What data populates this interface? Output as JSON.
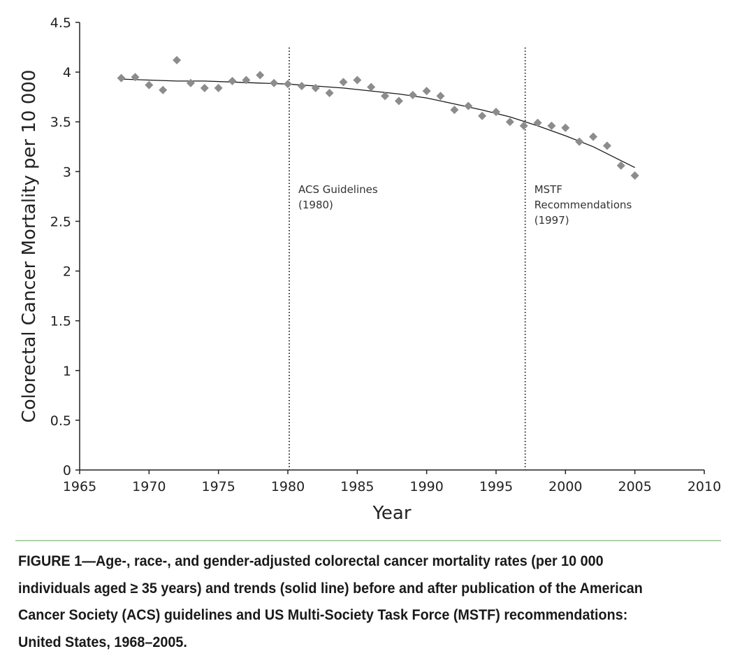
{
  "chart_data": {
    "type": "scatter",
    "xlabel": "Year",
    "ylabel": "Colorectal Cancer Mortality per 10 000",
    "xlim": [
      1965,
      2010
    ],
    "ylim": [
      0,
      4.5
    ],
    "x_ticks": [
      "1965",
      "1970",
      "1975",
      "1980",
      "1985",
      "1990",
      "1995",
      "2000",
      "2005",
      "2010"
    ],
    "y_ticks": [
      "0",
      "0.5",
      "1",
      "1.5",
      "2",
      "2.5",
      "3",
      "3.5",
      "4",
      "4.5"
    ],
    "grid": false,
    "marker_color": "#8c8c8c",
    "trend_color": "#1a1a1a",
    "series": [
      {
        "x": [
          1968,
          1969,
          1970,
          1971,
          1972,
          1973,
          1974,
          1975,
          1976,
          1977,
          1978,
          1979,
          1980,
          1981,
          1982,
          1983,
          1984,
          1985,
          1986,
          1987,
          1988,
          1989,
          1990,
          1991,
          1992,
          1993,
          1994,
          1995,
          1996,
          1997,
          1998,
          1999,
          2000,
          2001,
          2002,
          2003,
          2004,
          2005
        ],
        "y": [
          3.94,
          3.95,
          3.87,
          3.82,
          4.12,
          3.89,
          3.84,
          3.84,
          3.91,
          3.92,
          3.97,
          3.89,
          3.88,
          3.86,
          3.84,
          3.79,
          3.9,
          3.92,
          3.85,
          3.76,
          3.71,
          3.77,
          3.81,
          3.76,
          3.62,
          3.66,
          3.56,
          3.6,
          3.5,
          3.46,
          3.49,
          3.46,
          3.44,
          3.3,
          3.35,
          3.26,
          3.06,
          2.96
        ]
      }
    ],
    "trend_line": {
      "x": [
        1968,
        1970,
        1972,
        1974,
        1976,
        1978,
        1980,
        1982,
        1984,
        1986,
        1988,
        1990,
        1992,
        1994,
        1996,
        1998,
        2000,
        2002,
        2004,
        2005
      ],
      "y": [
        3.93,
        3.92,
        3.91,
        3.91,
        3.9,
        3.89,
        3.88,
        3.86,
        3.84,
        3.81,
        3.78,
        3.74,
        3.68,
        3.62,
        3.55,
        3.46,
        3.36,
        3.25,
        3.11,
        3.04
      ]
    },
    "annotations": [
      {
        "x": 1980,
        "lines": [
          "ACS Guidelines",
          "(1980)"
        ]
      },
      {
        "x": 1997,
        "lines": [
          "MSTF",
          "Recommendations",
          "(1997)"
        ]
      }
    ]
  },
  "caption": "FIGURE 1—Age-, race-, and gender-adjusted colorectal cancer mortality rates (per 10 000 individuals aged ≥ 35 years) and trends (solid line) before and after publication of the American Cancer Society (ACS) guidelines and US Multi-Society Task Force (MSTF) recommendations: United States, 1968–2005."
}
